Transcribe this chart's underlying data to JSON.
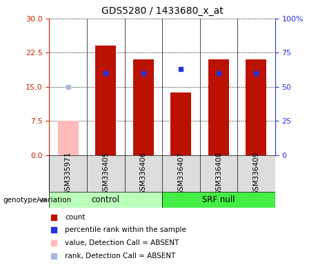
{
  "title": "GDS5280 / 1433680_x_at",
  "samples": [
    "GSM335971",
    "GSM336405",
    "GSM336406",
    "GSM336407",
    "GSM336408",
    "GSM336409"
  ],
  "count_values": [
    7.5,
    24.0,
    21.0,
    13.8,
    21.0,
    21.0
  ],
  "percentile_values": [
    50,
    60,
    60,
    63,
    60,
    60
  ],
  "absent_flags": [
    true,
    false,
    false,
    false,
    false,
    false
  ],
  "left_ylim": [
    0,
    30
  ],
  "left_yticks": [
    0,
    7.5,
    15,
    22.5,
    30
  ],
  "right_ylim": [
    0,
    100
  ],
  "right_yticks": [
    0,
    25,
    50,
    75,
    100
  ],
  "right_yticklabels": [
    "0",
    "25",
    "50",
    "75",
    "100%"
  ],
  "bar_color_present": "#bb1100",
  "bar_color_absent": "#ffbbbb",
  "dot_color_present": "#2233dd",
  "dot_color_absent": "#aabbdd",
  "groups": [
    {
      "label": "control",
      "start": 0,
      "end": 2,
      "color": "#bbffbb"
    },
    {
      "label": "SRF null",
      "start": 3,
      "end": 5,
      "color": "#44ee44"
    }
  ],
  "group_row_label": "genotype/variation",
  "legend_items": [
    {
      "label": "count",
      "color": "#bb1100"
    },
    {
      "label": "percentile rank within the sample",
      "color": "#2233dd"
    },
    {
      "label": "value, Detection Call = ABSENT",
      "color": "#ffbbbb"
    },
    {
      "label": "rank, Detection Call = ABSENT",
      "color": "#aabbdd"
    }
  ],
  "left_axis_color": "#cc2200",
  "right_axis_color": "#2233dd",
  "figsize": [
    4.61,
    3.84
  ],
  "dpi": 100
}
